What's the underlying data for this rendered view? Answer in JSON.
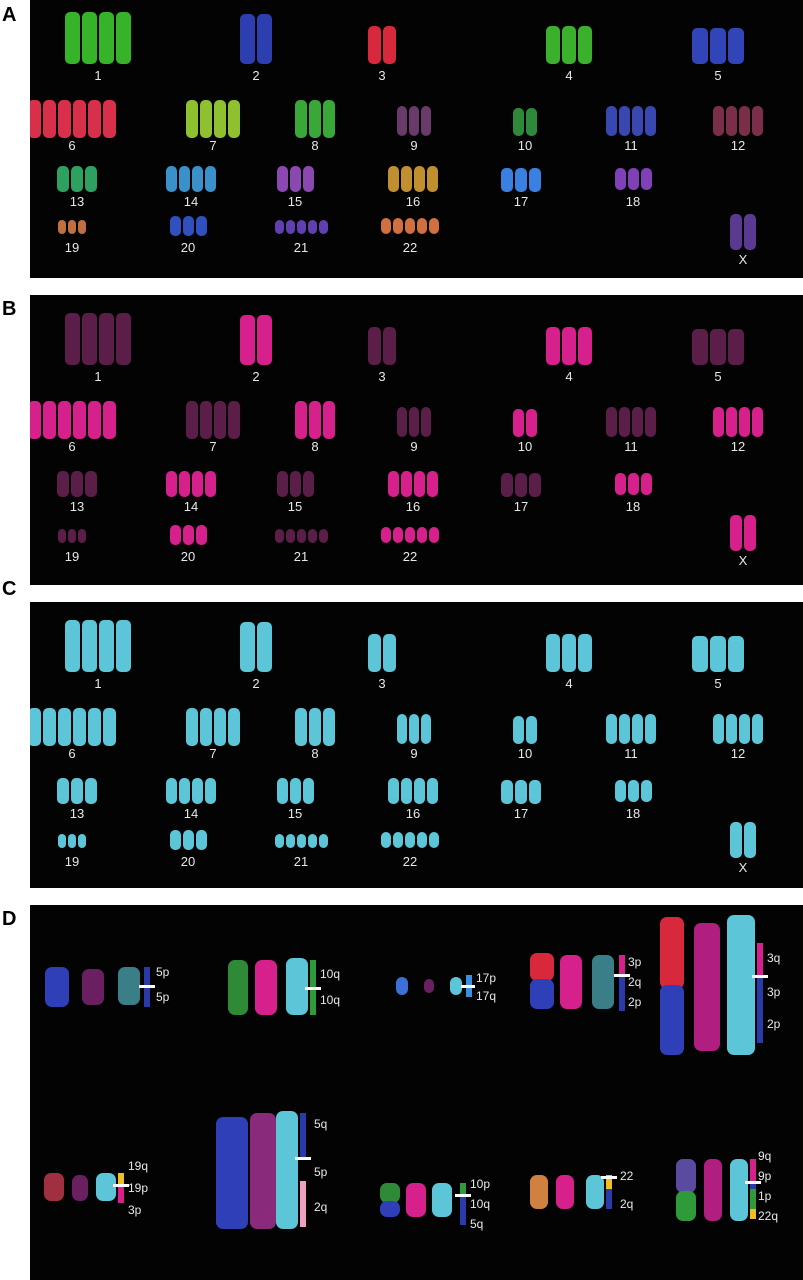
{
  "panels": {
    "A": {
      "letter": "A"
    },
    "B": {
      "letter": "B"
    },
    "C": {
      "letter": "C"
    },
    "D": {
      "letter": "D"
    }
  },
  "chromosome_labels": [
    "1",
    "2",
    "3",
    "4",
    "5",
    "6",
    "7",
    "8",
    "9",
    "10",
    "11",
    "12",
    "13",
    "14",
    "15",
    "16",
    "17",
    "18",
    "19",
    "20",
    "21",
    "22",
    "X"
  ],
  "colors": {
    "panelA": {
      "1": "#37b32a",
      "2": "#2d3fb0",
      "3": "#d8283c",
      "4": "#3ab02c",
      "5": "#3145b8",
      "6": "#d8304a",
      "7": "#8fc030",
      "8": "#3aa838",
      "9": "#6a3a6a",
      "10": "#2e8a3a",
      "11": "#3848b0",
      "12": "#7a2e4a",
      "13": "#2ea060",
      "14": "#3a90c8",
      "15": "#8a48b0",
      "16": "#c09030",
      "17": "#3a80e0",
      "18": "#8040b8",
      "19": "#c07040",
      "20": "#3050c0",
      "21": "#6040b0",
      "22": "#d07040",
      "X": "#5a3a90"
    },
    "panelB_bright": "#d6218c",
    "panelB_dim": "#5a1e48",
    "panelC": "#5cc6d8"
  },
  "panelD": {
    "groups": [
      {
        "labels": [
          "5p",
          "5p"
        ]
      },
      {
        "labels": [
          "10q",
          "10q"
        ]
      },
      {
        "labels": [
          "17p",
          "17q"
        ]
      },
      {
        "labels": [
          "3p",
          "2q",
          "2p"
        ]
      },
      {
        "labels": [
          "3q",
          "3p",
          "2p"
        ]
      },
      {
        "labels": [
          "19q",
          "19p",
          "3p"
        ]
      },
      {
        "labels": [
          "5q",
          "5p",
          "2q"
        ]
      },
      {
        "labels": [
          "10p",
          "10q",
          "5q"
        ]
      },
      {
        "labels": [
          "22",
          "2q"
        ]
      },
      {
        "labels": [
          "9q",
          "9p",
          "1p",
          "22q"
        ]
      }
    ]
  }
}
